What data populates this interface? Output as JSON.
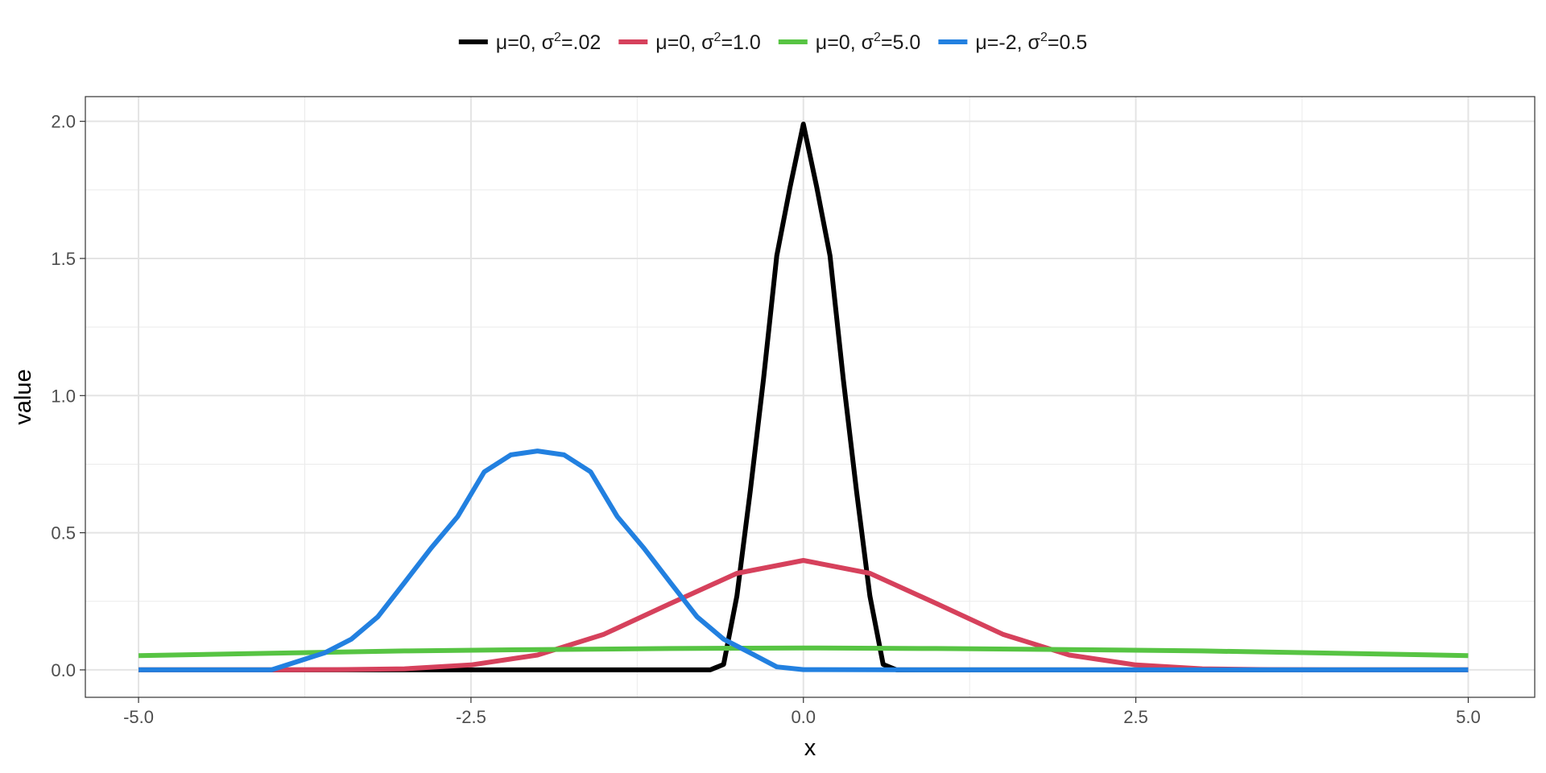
{
  "chart_data": {
    "type": "line",
    "xlabel": "x",
    "ylabel": "value",
    "xlim": [
      -5.4,
      5.5
    ],
    "ylim": [
      -0.1,
      2.09
    ],
    "x_ticks": [
      -5.0,
      -2.5,
      0.0,
      2.5,
      5.0
    ],
    "x_tick_labels": [
      "-5.0",
      "-2.5",
      "0.0",
      "2.5",
      "5.0"
    ],
    "y_ticks": [
      0.0,
      0.5,
      1.0,
      1.5,
      2.0
    ],
    "y_tick_labels": [
      "0.0",
      "0.5",
      "1.0",
      "1.5",
      "2.0"
    ],
    "grid": true,
    "legend_position": "top",
    "series": [
      {
        "legend": {
          "mu": "μ=0, ",
          "sigma": "σ",
          "sup": "2",
          "value": "=.02"
        },
        "color": "#000000",
        "x": [
          -5.0,
          -1.0,
          -0.9,
          -0.8,
          -0.7,
          -0.6,
          -0.5,
          -0.4,
          -0.3,
          -0.2,
          -0.1,
          0.0,
          0.1,
          0.2,
          0.3,
          0.4,
          0.5,
          0.6,
          0.7,
          0.8,
          0.9,
          1.0,
          5.0
        ],
        "y": [
          0.0,
          0.0,
          0.0,
          0.0,
          0.0,
          0.02,
          0.27,
          0.65,
          1.06,
          1.51,
          1.76,
          1.99,
          1.76,
          1.51,
          1.06,
          0.65,
          0.27,
          0.02,
          0.0,
          0.0,
          0.0,
          0.0,
          0.0
        ]
      },
      {
        "legend": {
          "mu": "μ=0, ",
          "sigma": "σ",
          "sup": "2",
          "value": "=1.0"
        },
        "color": "#d6415c",
        "x": [
          -5.0,
          -4.5,
          -4.0,
          -3.5,
          -3.0,
          -2.5,
          -2.0,
          -1.5,
          -1.0,
          -0.5,
          0.0,
          0.5,
          1.0,
          1.5,
          2.0,
          2.5,
          3.0,
          3.5,
          4.0,
          4.5,
          5.0
        ],
        "y": [
          0.0,
          0.0,
          0.0,
          0.001,
          0.004,
          0.018,
          0.054,
          0.13,
          0.242,
          0.352,
          0.399,
          0.352,
          0.242,
          0.13,
          0.054,
          0.018,
          0.004,
          0.001,
          0.0,
          0.0,
          0.0
        ]
      },
      {
        "legend": {
          "mu": "μ=0, ",
          "sigma": "σ",
          "sup": "2",
          "value": "=5.0"
        },
        "color": "#57c443",
        "x": [
          -5.0,
          -4.0,
          -3.0,
          -2.0,
          -1.0,
          0.0,
          1.0,
          2.0,
          3.0,
          4.0,
          5.0
        ],
        "y": [
          0.052,
          0.061,
          0.069,
          0.074,
          0.078,
          0.08,
          0.078,
          0.074,
          0.069,
          0.061,
          0.052
        ]
      },
      {
        "legend": {
          "mu": "μ=-2, ",
          "sigma": "σ",
          "sup": "2",
          "value": "=0.5"
        },
        "color": "#2280e0",
        "x": [
          -5.0,
          -4.0,
          -3.6,
          -3.4,
          -3.2,
          -3.0,
          -2.8,
          -2.6,
          -2.4,
          -2.2,
          -2.0,
          -1.8,
          -1.6,
          -1.4,
          -1.2,
          -1.0,
          -0.8,
          -0.6,
          -0.4,
          -0.2,
          0.0,
          1.0,
          5.0
        ],
        "y": [
          0.0,
          0.0,
          0.062,
          0.112,
          0.194,
          0.318,
          0.444,
          0.559,
          0.722,
          0.784,
          0.798,
          0.784,
          0.722,
          0.559,
          0.444,
          0.318,
          0.194,
          0.112,
          0.062,
          0.011,
          0.001,
          0.0,
          0.0
        ]
      }
    ]
  }
}
